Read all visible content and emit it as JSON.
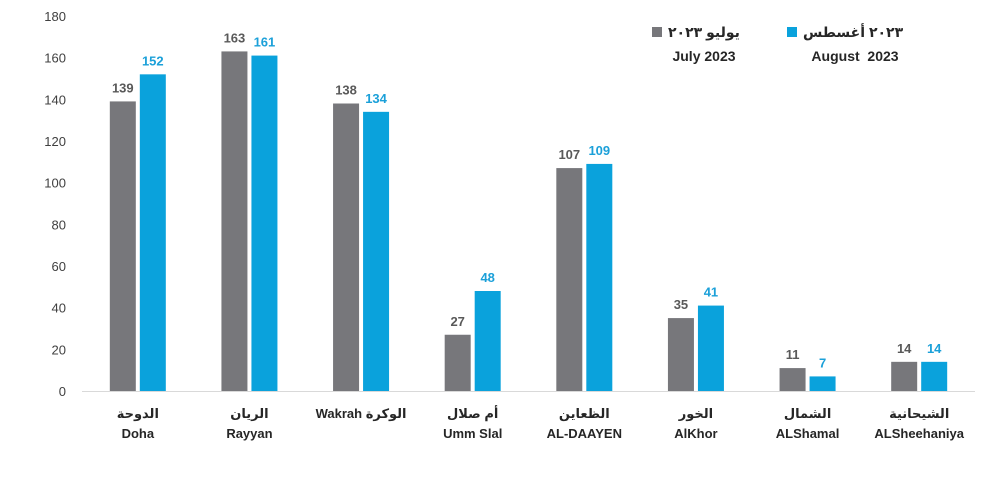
{
  "chart_data": {
    "type": "bar",
    "ylim": [
      0,
      180
    ],
    "yticks": [
      0,
      20,
      40,
      60,
      80,
      100,
      120,
      140,
      160,
      180
    ],
    "grid": false,
    "legend_position": "top-right",
    "categories": [
      {
        "ar": "الدوحة",
        "en": "Doha"
      },
      {
        "ar": "الريان",
        "en": "Rayyan"
      },
      {
        "ar": "Wakrah الوكرة",
        "en": ""
      },
      {
        "ar": "أم صلال",
        "en": "Umm Slal"
      },
      {
        "ar": "الظعاين",
        "en": "AL-DAAYEN"
      },
      {
        "ar": "الخور",
        "en": "AlKhor"
      },
      {
        "ar": "الشمال",
        "en": "ALShamal"
      },
      {
        "ar": "الشيحانية",
        "en": "ALSheehaniya"
      }
    ],
    "series": [
      {
        "name_ar": "يوليو ٢٠٢٣",
        "name_en": "July 2023",
        "color": "#77777b",
        "values": [
          139,
          163,
          138,
          27,
          107,
          35,
          11,
          14
        ]
      },
      {
        "name_ar": "٢٠٢٣ أغسطس",
        "name_en": "August  2023",
        "color": "#0aa2dc",
        "values": [
          152,
          161,
          134,
          48,
          109,
          41,
          7,
          14
        ]
      }
    ]
  }
}
